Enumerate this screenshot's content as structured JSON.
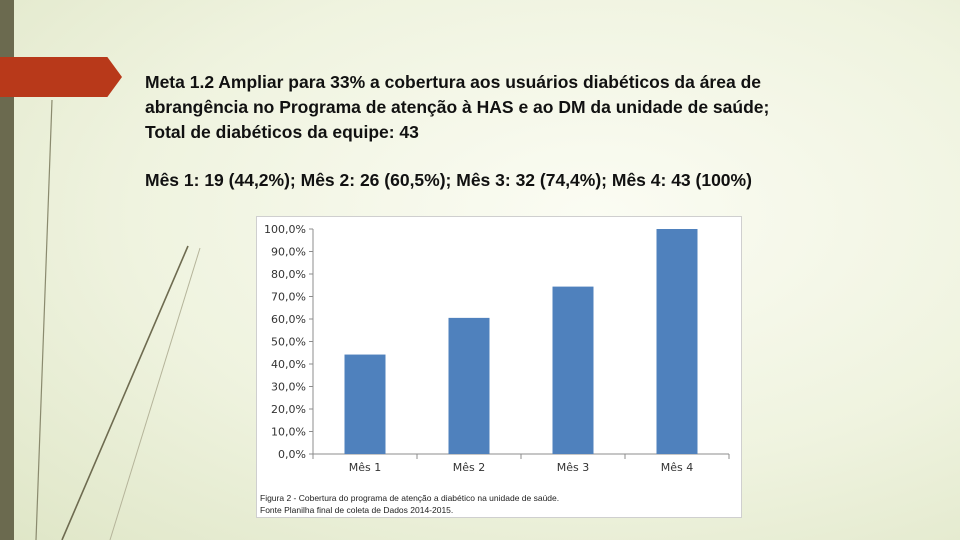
{
  "slide": {
    "heading_lines": [
      "Meta 1.2 Ampliar para 33% a cobertura aos usuários diabéticos da área de",
      "abrangência no Programa de atenção à HAS e ao DM da unidade de saúde;",
      "Total de diabéticos da equipe: 43"
    ],
    "stats_line": "Mês 1: 19 (44,2%); Mês 2: 26 (60,5%); Mês 3: 32 (74,4%); Mês 4: 43 (100%)",
    "caption_lines": [
      "Figura 2 - Cobertura do programa de atenção a diabético na unidade de saúde.",
      "Fonte Planilha final de coleta de Dados 2014-2015."
    ]
  },
  "colors": {
    "bar": "#4f81bd",
    "axis": "#8c8c8c",
    "accent_tab": "#b8391a",
    "left_bar": "#6b6a4f"
  },
  "chart_data": {
    "type": "bar",
    "categories": [
      "Mês 1",
      "Mês 2",
      "Mês 3",
      "Mês 4"
    ],
    "values": [
      44.2,
      60.5,
      74.4,
      100.0
    ],
    "ylim": [
      0,
      100
    ],
    "yticks": [
      "0,0%",
      "10,0%",
      "20,0%",
      "30,0%",
      "40,0%",
      "50,0%",
      "60,0%",
      "70,0%",
      "80,0%",
      "90,0%",
      "100,0%"
    ],
    "grid": false,
    "legend": "none"
  }
}
